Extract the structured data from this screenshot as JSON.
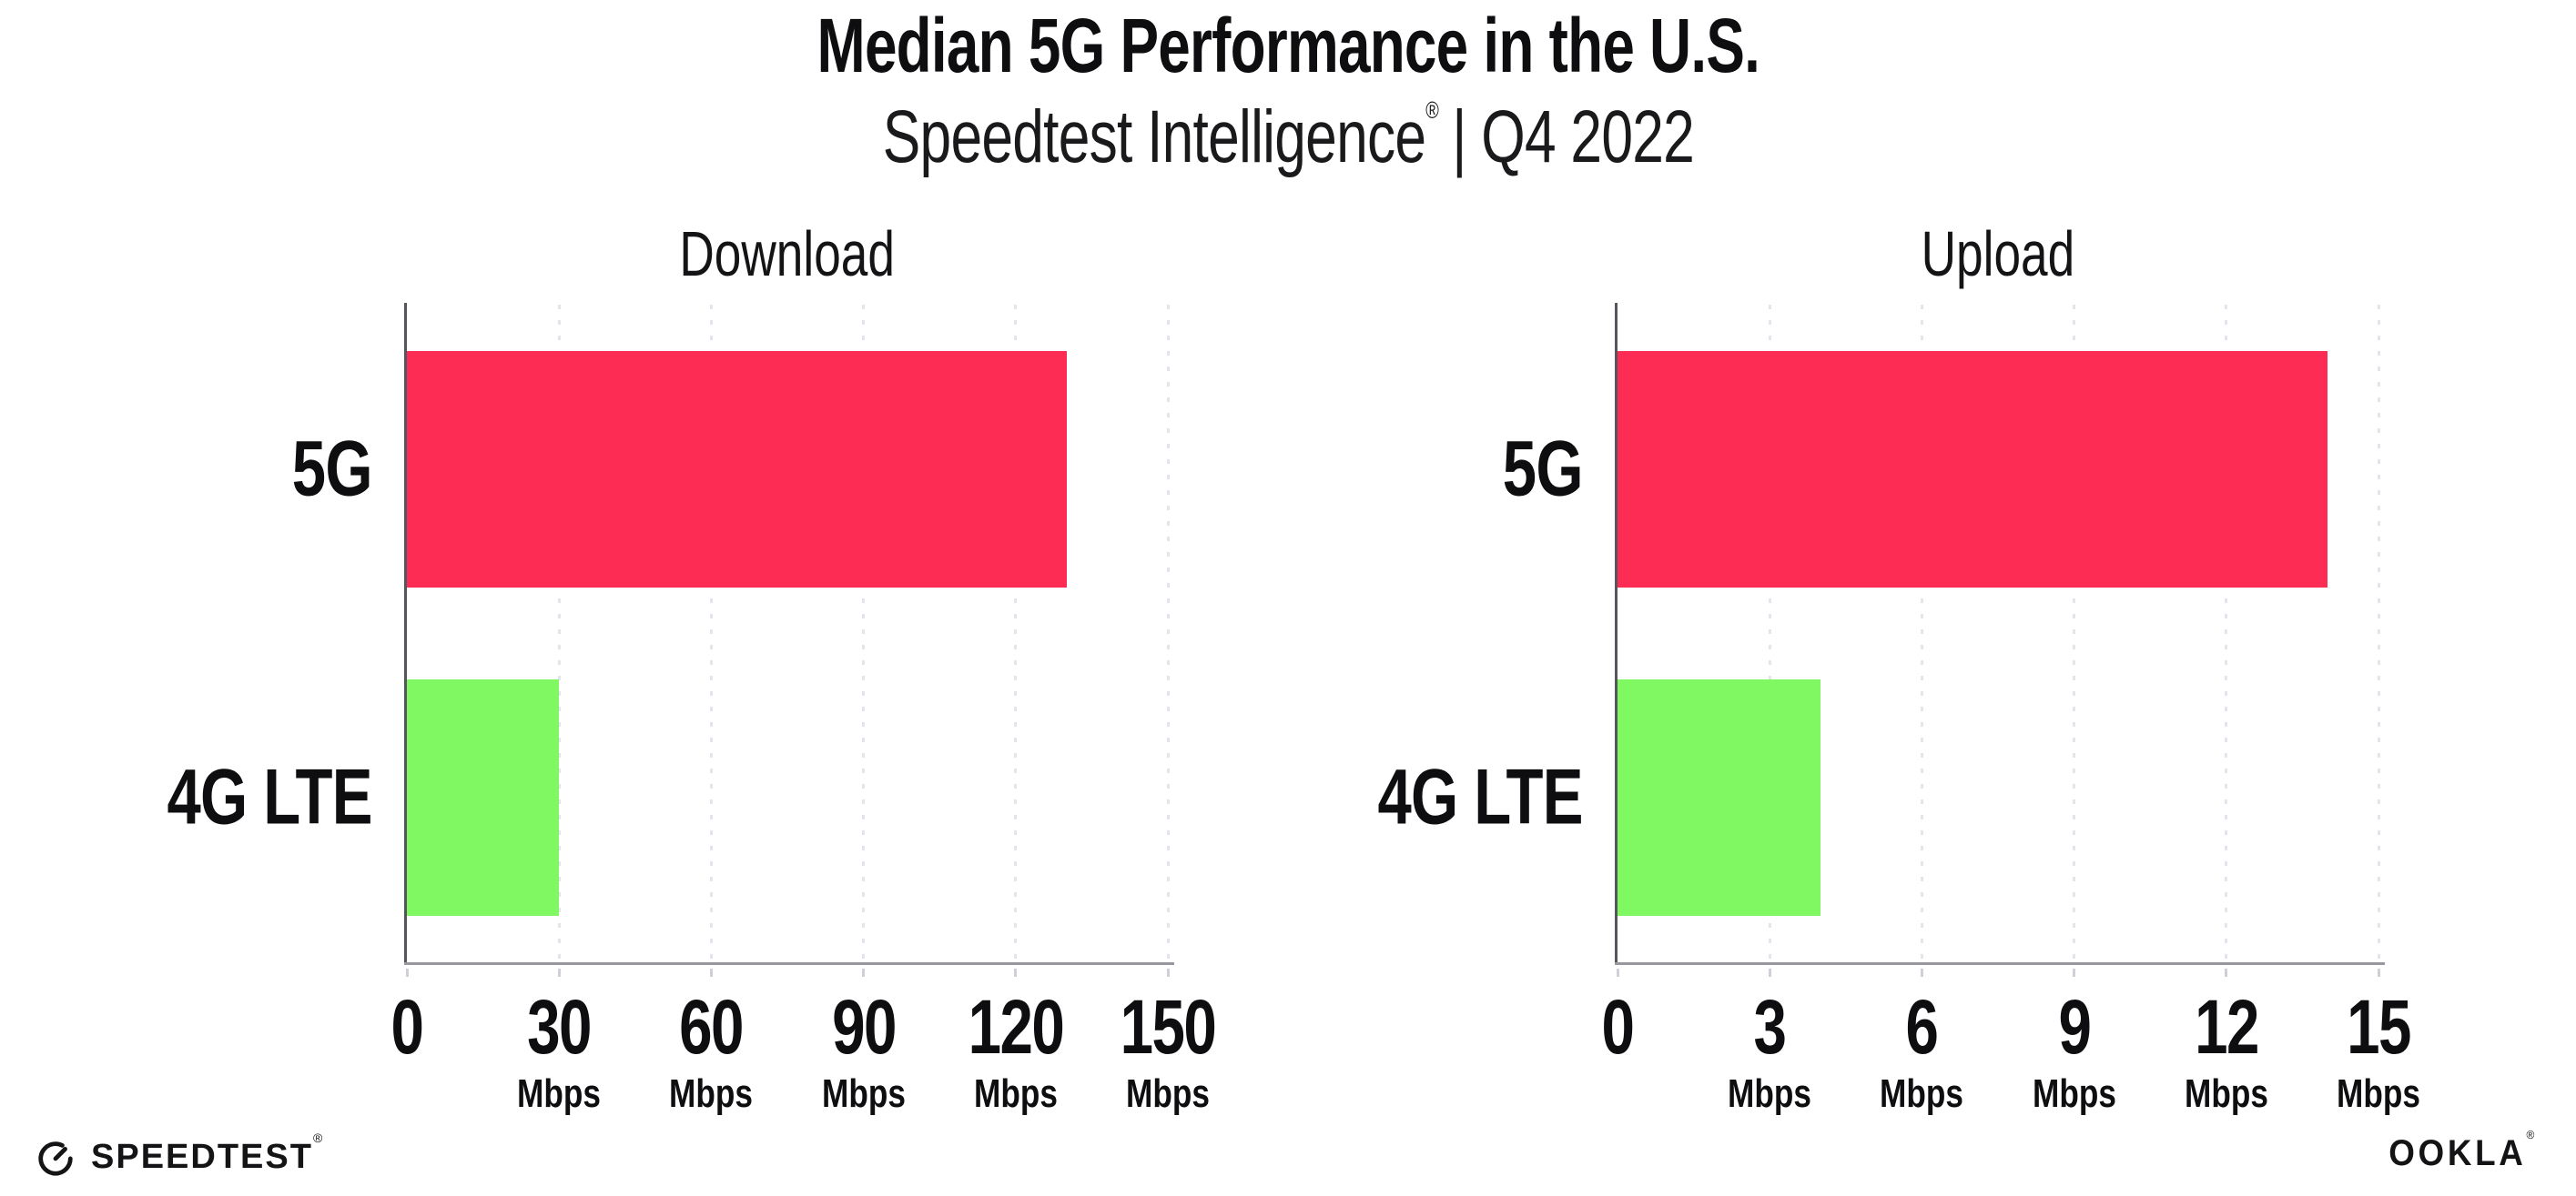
{
  "header": {
    "title": "Median 5G Performance in the U.S.",
    "subtitle_brand": "Speedtest Intelligence",
    "subtitle_reg": "®",
    "subtitle_rest": "| Q4 2022"
  },
  "chart_data": [
    {
      "type": "bar",
      "orientation": "horizontal",
      "title": "Download",
      "categories": [
        "5G",
        "4G LTE"
      ],
      "values": [
        130,
        30
      ],
      "value_unit": "Mbps",
      "xlim": [
        0,
        150
      ],
      "bar_colors": [
        "#fc2c55",
        "#80f862"
      ],
      "grid": "vertical-dotted",
      "legend": "none",
      "ticks": [
        {
          "value": 0,
          "label": "0",
          "unit": ""
        },
        {
          "value": 30,
          "label": "30",
          "unit": "Mbps"
        },
        {
          "value": 60,
          "label": "60",
          "unit": "Mbps"
        },
        {
          "value": 90,
          "label": "90",
          "unit": "Mbps"
        },
        {
          "value": 120,
          "label": "120",
          "unit": "Mbps"
        },
        {
          "value": 150,
          "label": "150",
          "unit": "Mbps"
        }
      ]
    },
    {
      "type": "bar",
      "orientation": "horizontal",
      "title": "Upload",
      "categories": [
        "5G",
        "4G LTE"
      ],
      "values": [
        14,
        4
      ],
      "value_unit": "Mbps",
      "xlim": [
        0,
        15
      ],
      "bar_colors": [
        "#fc2c55",
        "#80f862"
      ],
      "grid": "vertical-dotted",
      "legend": "none",
      "ticks": [
        {
          "value": 0,
          "label": "0",
          "unit": ""
        },
        {
          "value": 3,
          "label": "3",
          "unit": "Mbps"
        },
        {
          "value": 6,
          "label": "6",
          "unit": "Mbps"
        },
        {
          "value": 9,
          "label": "9",
          "unit": "Mbps"
        },
        {
          "value": 12,
          "label": "12",
          "unit": "Mbps"
        },
        {
          "value": 15,
          "label": "15",
          "unit": "Mbps"
        }
      ]
    }
  ],
  "footer": {
    "speedtest_label": "SPEEDTEST",
    "speedtest_reg": "®",
    "ookla_label": "OOKLA",
    "ookla_reg": "®"
  },
  "colors": {
    "bar_5g": "#fc2c55",
    "bar_4g_lte": "#80f862",
    "gridline": "#e4e4ec",
    "axis_y": "#55555d",
    "axis_x": "#98989f",
    "text": "#0e0e10"
  }
}
